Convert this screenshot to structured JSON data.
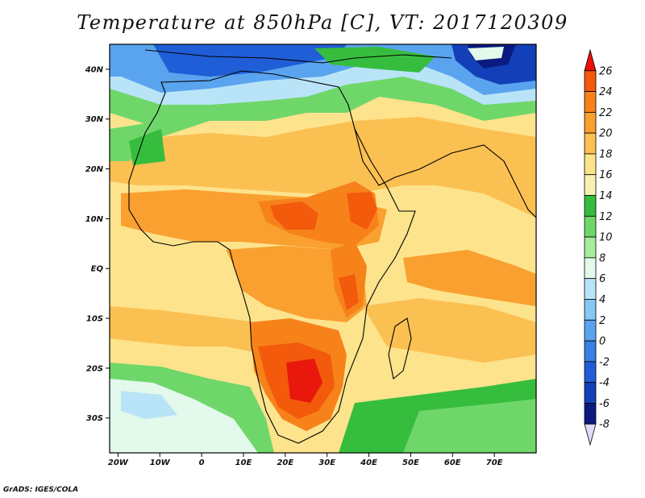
{
  "title": "Temperature at 850hPa [C], VT: 2017120309",
  "credit": "GrADS: IGES/COLA",
  "map": {
    "lon_range": [
      -22,
      80
    ],
    "lat_range": [
      -37,
      45
    ],
    "lon_ticks": [
      {
        "lon": -20,
        "label": "20W"
      },
      {
        "lon": -10,
        "label": "10W"
      },
      {
        "lon": 0,
        "label": "0"
      },
      {
        "lon": 10,
        "label": "10E"
      },
      {
        "lon": 20,
        "label": "20E"
      },
      {
        "lon": 30,
        "label": "30E"
      },
      {
        "lon": 40,
        "label": "40E"
      },
      {
        "lon": 50,
        "label": "50E"
      },
      {
        "lon": 60,
        "label": "60E"
      },
      {
        "lon": 70,
        "label": "70E"
      }
    ],
    "lat_ticks": [
      {
        "lat": 40,
        "label": "40N"
      },
      {
        "lat": 30,
        "label": "30N"
      },
      {
        "lat": 20,
        "label": "20N"
      },
      {
        "lat": 10,
        "label": "10N"
      },
      {
        "lat": 0,
        "label": "EQ"
      },
      {
        "lat": -10,
        "label": "10S"
      },
      {
        "lat": -20,
        "label": "20S"
      },
      {
        "lat": -30,
        "label": "30S"
      }
    ]
  },
  "colorbar": {
    "levels": [
      "26",
      "24",
      "22",
      "20",
      "18",
      "16",
      "14",
      "12",
      "10",
      "8",
      "6",
      "4",
      "2",
      "0",
      "-2",
      "-4",
      "-6",
      "-8"
    ],
    "colors_top_to_bottom": [
      "#f00f0a",
      "#f35a0c",
      "#f7821a",
      "#f9a030",
      "#fbc052",
      "#fde38c",
      "#f9f0b4",
      "#37bd3e",
      "#6fd76a",
      "#a9eb9c",
      "#e2f9ec",
      "#b9e4f8",
      "#86c8f4",
      "#5aa4ef",
      "#3880e4",
      "#1f5ed6",
      "#1340b8",
      "#0a1a80",
      "#e0daf8"
    ]
  },
  "temperature_colors": {
    "t26": "#e8180c",
    "t24": "#f35a0c",
    "t22": "#f7821a",
    "t20": "#f9a030",
    "t18": "#fbc052",
    "t16": "#fde38c",
    "t14": "#f9f0b4",
    "t12": "#37bd3e",
    "t10": "#6fd76a",
    "t8": "#a9eb9c",
    "t6": "#e2f9ec",
    "t4": "#b9e4f8",
    "t2": "#86c8f4",
    "t0": "#5aa4ef",
    "tm2": "#3880e4",
    "tm4": "#1f5ed6",
    "tm6": "#1340b8",
    "tm8": "#0a1a80"
  }
}
